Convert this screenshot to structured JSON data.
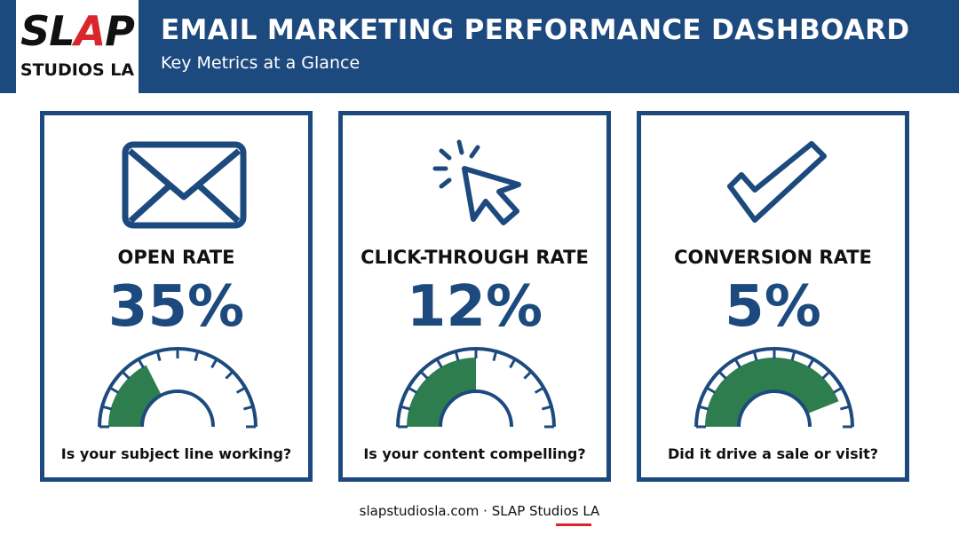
{
  "header": {
    "logo_top": "SLAP",
    "logo_bottom": "STUDIOS LA",
    "title": "EMAIL MARKETING PERFORMANCE DASHBOARD",
    "subtitle": "Key Metrics at a Glance"
  },
  "colors": {
    "primary": "#1d4a7e",
    "gauge_fill": "#2e7d4f",
    "accent_red": "#d9252b"
  },
  "cards": [
    {
      "icon": "envelope-icon",
      "label": "OPEN RATE",
      "value": "35%",
      "fraction": 0.35,
      "question": "Is your subject line working?"
    },
    {
      "icon": "cursor-click-icon",
      "label": "CLICK-THROUGH RATE",
      "value": "12%",
      "fraction": 0.5,
      "question": "Is your content compelling?"
    },
    {
      "icon": "checkmark-icon",
      "label": "CONVERSION RATE",
      "value": "5%",
      "fraction": 0.88,
      "question": "Did it drive a sale or visit?"
    }
  ],
  "footer": {
    "text": "slapstudiosla.com · SLAP Studios LA"
  }
}
